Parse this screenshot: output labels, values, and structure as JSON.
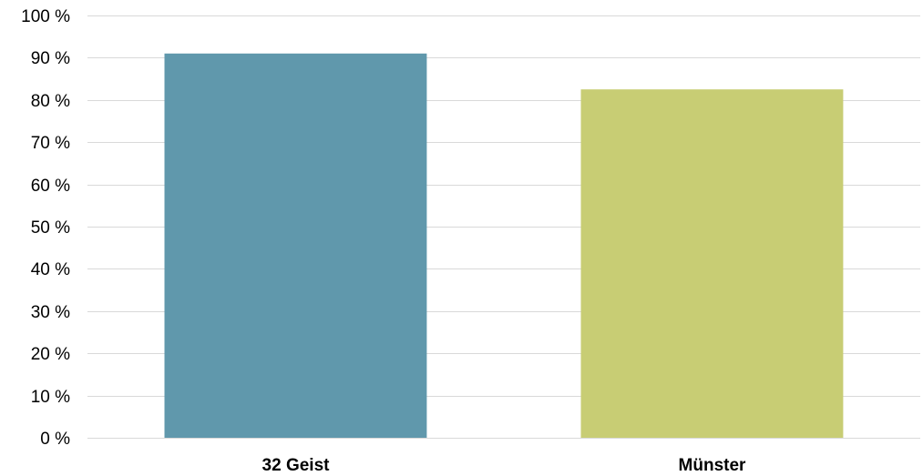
{
  "chart_data": {
    "type": "bar",
    "title": "",
    "xlabel": "",
    "ylabel": "",
    "categories": [
      "32 Geist",
      "Münster"
    ],
    "values": [
      91,
      82.5
    ],
    "colors": [
      "#6098ac",
      "#c8cd74"
    ],
    "ylim": [
      0,
      100
    ],
    "yticks": [
      0,
      10,
      20,
      30,
      40,
      50,
      60,
      70,
      80,
      90,
      100
    ],
    "ytick_suffix": " %",
    "grid": true,
    "legend": "none"
  }
}
